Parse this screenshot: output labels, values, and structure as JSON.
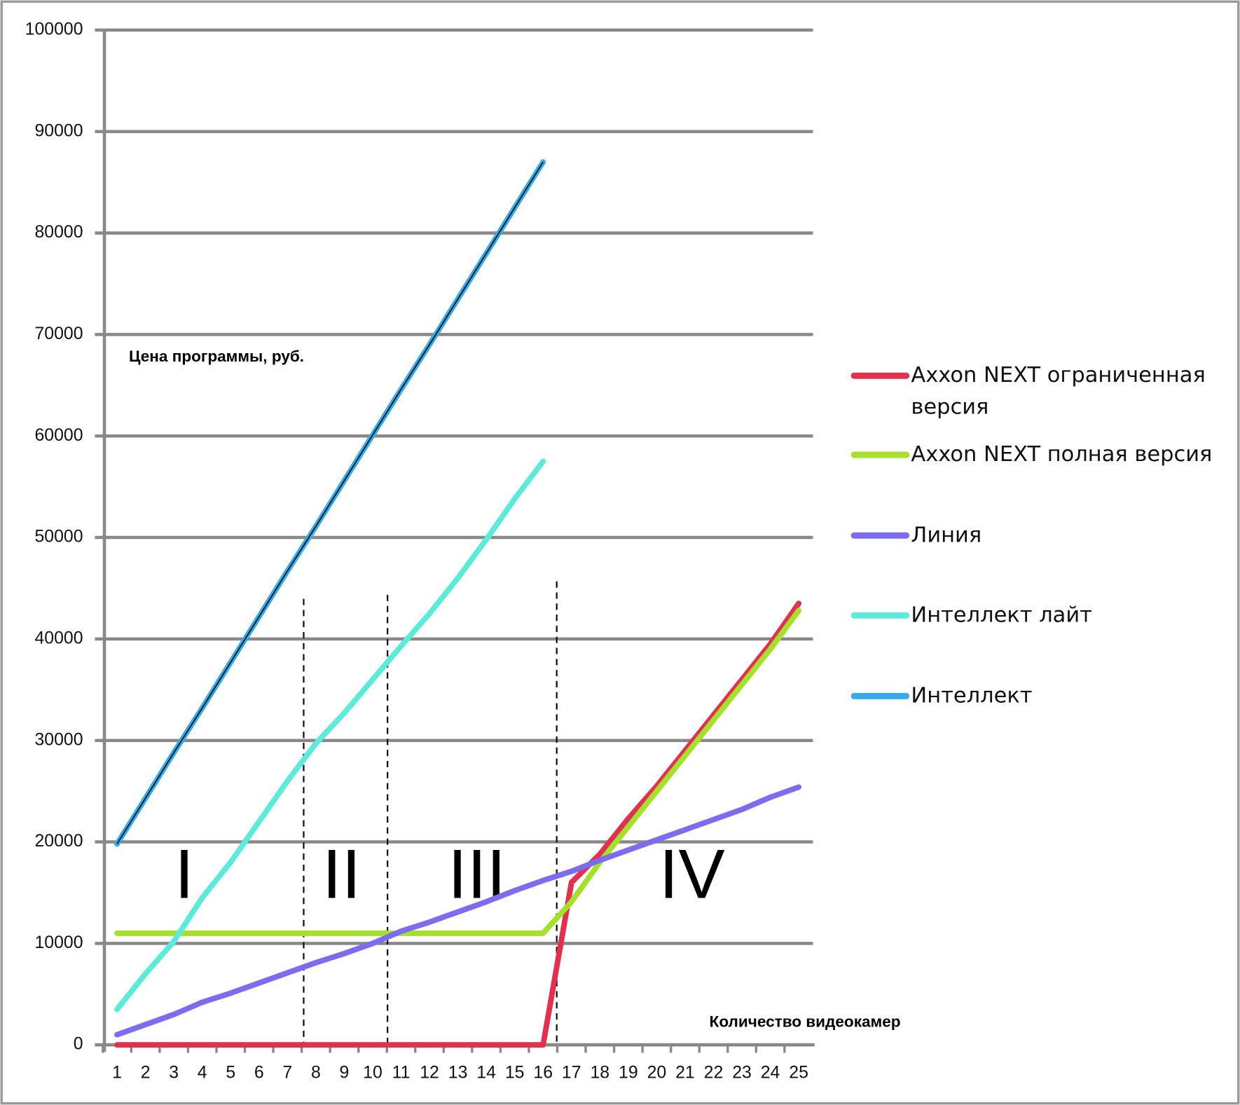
{
  "chart_data": {
    "type": "line",
    "y_label": "Цена программы, руб.",
    "x_label": "Количество видеокамер",
    "categories": [
      1,
      2,
      3,
      4,
      5,
      6,
      7,
      8,
      9,
      10,
      11,
      12,
      13,
      14,
      15,
      16,
      17,
      18,
      19,
      20,
      21,
      22,
      23,
      24,
      25
    ],
    "ylim": [
      0,
      100000
    ],
    "yticks": [
      0,
      10000,
      20000,
      30000,
      40000,
      50000,
      60000,
      70000,
      80000,
      90000,
      100000
    ],
    "grid": true,
    "legend": "right",
    "annotations": [
      "I",
      "II",
      "III",
      "IV"
    ],
    "series": [
      {
        "name": "Axxon NEXT ограниченная версия",
        "color": "#e0314f",
        "values": [
          0,
          0,
          0,
          0,
          0,
          0,
          0,
          0,
          0,
          0,
          0,
          0,
          0,
          0,
          0,
          0,
          16000,
          18800,
          22300,
          25500,
          29000,
          32500,
          36000,
          39500,
          43500
        ]
      },
      {
        "name": "Axxon NEXT полная версия",
        "color": "#a4e02c",
        "values": [
          11000,
          11000,
          11000,
          11000,
          11000,
          11000,
          11000,
          11000,
          11000,
          11000,
          11000,
          11000,
          11000,
          11000,
          11000,
          11000,
          14100,
          18000,
          21500,
          25000,
          28500,
          32000,
          35500,
          39000,
          42800
        ]
      },
      {
        "name": "Линия",
        "color": "#7b6cf0",
        "values": [
          1000,
          2000,
          3000,
          4200,
          5100,
          6100,
          7100,
          8100,
          9000,
          10000,
          11200,
          12100,
          13100,
          14100,
          15200,
          16200,
          17100,
          18200,
          19200,
          20200,
          21200,
          22200,
          23200,
          24400,
          25400
        ]
      },
      {
        "name": "Интеллект лайт",
        "color": "#5eead8",
        "values": [
          3500,
          7000,
          10200,
          14500,
          18000,
          22000,
          26000,
          29700,
          32700,
          36000,
          39300,
          42500,
          46000,
          49800,
          53800,
          57500,
          null,
          null,
          null,
          null,
          null,
          null,
          null,
          null,
          null
        ]
      },
      {
        "name": "Интеллект",
        "color": "#3aa9e8",
        "values": [
          19800,
          24300,
          28800,
          33200,
          37700,
          42200,
          46700,
          51100,
          55600,
          60100,
          64600,
          69000,
          73500,
          78000,
          82500,
          87000,
          null,
          null,
          null,
          null,
          null,
          null,
          null,
          null,
          null
        ]
      }
    ]
  }
}
